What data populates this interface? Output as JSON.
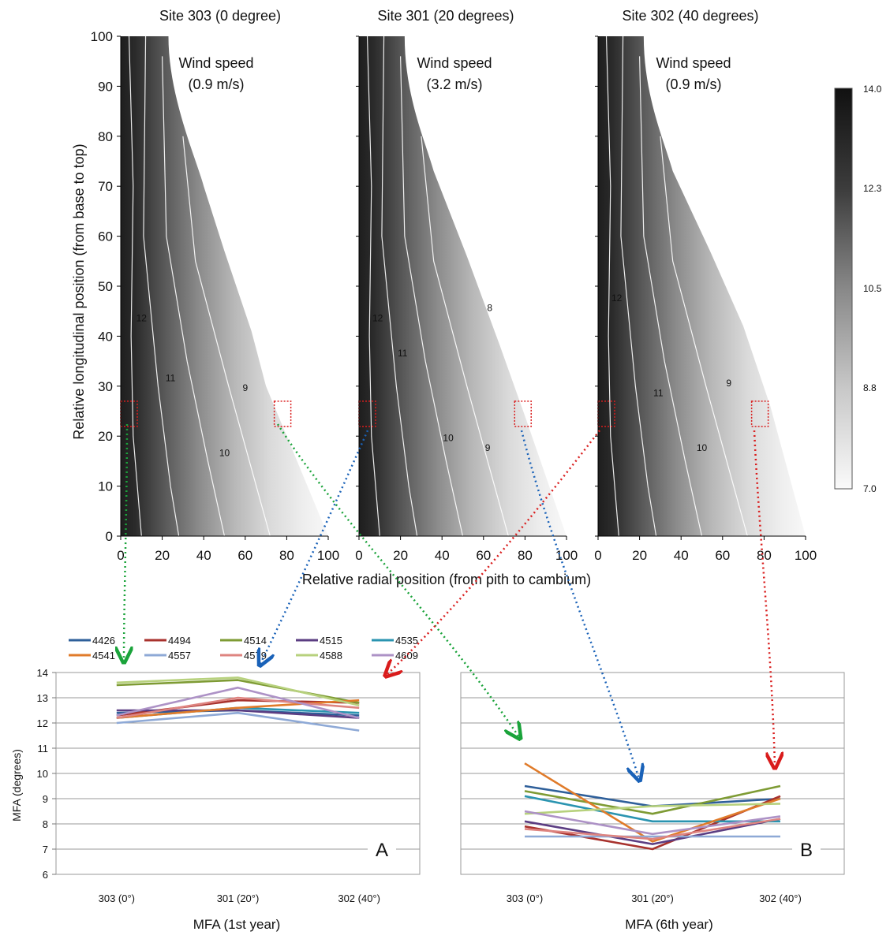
{
  "chart_data": [
    {
      "type": "heatmap",
      "name": "site-303",
      "title": "Site 303 (0 degree)",
      "annotation": [
        "Wind speed",
        "(0.9 m/s)"
      ],
      "xlabel": "Relative radial position (from pith to cambium)",
      "ylabel": "Relative longitudinal position (from base to top)",
      "xlim": [
        0,
        100
      ],
      "ylim": [
        0,
        100
      ],
      "xticks": [
        "0",
        "20",
        "40",
        "60",
        "80",
        "100"
      ],
      "yticks": [
        "0",
        "10",
        "20",
        "30",
        "40",
        "50",
        "60",
        "70",
        "80",
        "90",
        "100"
      ],
      "contour_labels": [
        {
          "label": "12",
          "x": 10,
          "y": 43
        },
        {
          "label": "11",
          "x": 24,
          "y": 31
        },
        {
          "label": "10",
          "x": 50,
          "y": 16
        },
        {
          "label": "9",
          "x": 60,
          "y": 29
        }
      ],
      "outline": {
        "top_width": 23,
        "mid": [
          [
            40,
            70
          ],
          [
            50,
            57
          ],
          [
            63,
            41
          ],
          [
            70,
            30
          ],
          [
            100,
            0
          ]
        ]
      }
    },
    {
      "type": "heatmap",
      "name": "site-301",
      "title": "Site 301 (20 degrees)",
      "annotation": [
        "Wind speed",
        "(3.2 m/s)"
      ],
      "xlim": [
        0,
        100
      ],
      "ylim": [
        0,
        100
      ],
      "xticks": [
        "0",
        "20",
        "40",
        "60",
        "80",
        "100"
      ],
      "contour_labels": [
        {
          "label": "12",
          "x": 9,
          "y": 43
        },
        {
          "label": "11",
          "x": 21,
          "y": 36
        },
        {
          "label": "10",
          "x": 43,
          "y": 19
        },
        {
          "label": "9",
          "x": 62,
          "y": 17
        },
        {
          "label": "8",
          "x": 63,
          "y": 45
        }
      ],
      "outline": {
        "top_width": 22,
        "mid": [
          [
            36,
            73
          ],
          [
            52,
            56
          ],
          [
            68,
            38
          ],
          [
            80,
            24
          ],
          [
            100,
            0
          ]
        ]
      }
    },
    {
      "type": "heatmap",
      "name": "site-302",
      "title": "Site 302 (40 degrees)",
      "annotation": [
        "Wind speed",
        "(0.9 m/s)"
      ],
      "xlim": [
        0,
        100
      ],
      "ylim": [
        0,
        100
      ],
      "xticks": [
        "0",
        "20",
        "40",
        "60",
        "80",
        "100"
      ],
      "contour_labels": [
        {
          "label": "12",
          "x": 9,
          "y": 47
        },
        {
          "label": "11",
          "x": 29,
          "y": 28
        },
        {
          "label": "10",
          "x": 50,
          "y": 17
        },
        {
          "label": "9",
          "x": 63,
          "y": 30
        }
      ],
      "outline": {
        "top_width": 22,
        "mid": [
          [
            36,
            73
          ],
          [
            54,
            57
          ],
          [
            70,
            42
          ],
          [
            83,
            26
          ],
          [
            100,
            0
          ]
        ]
      }
    },
    {
      "type": "colorbar",
      "ticks": [
        "14.0",
        "12.3",
        "10.5",
        "8.8",
        "7.0"
      ],
      "range": [
        7.0,
        14.0
      ]
    },
    {
      "type": "line",
      "name": "mfa-1st-year",
      "xlabel": "MFA (1st year)",
      "ylabel": "MFA (degrees)",
      "panel_letter": "A",
      "categories": [
        "303 (0°)",
        "301 (20°)",
        "302 (40°)"
      ],
      "ylim": [
        6,
        14
      ],
      "yticks": [
        "6",
        "7",
        "8",
        "9",
        "10",
        "11",
        "12",
        "13",
        "14"
      ],
      "grid": true,
      "legend": "top",
      "series": [
        {
          "name": "4426",
          "color": "#2e5f9a",
          "values": [
            12.4,
            12.5,
            12.3
          ]
        },
        {
          "name": "4494",
          "color": "#a8322d",
          "values": [
            12.3,
            12.9,
            12.8
          ]
        },
        {
          "name": "4514",
          "color": "#7e9b34",
          "values": [
            13.5,
            13.7,
            12.8
          ]
        },
        {
          "name": "4515",
          "color": "#5b3d82",
          "values": [
            12.5,
            12.5,
            12.2
          ]
        },
        {
          "name": "4535",
          "color": "#2a94b0",
          "values": [
            12.2,
            12.6,
            12.4
          ]
        },
        {
          "name": "4541",
          "color": "#e07b2a",
          "values": [
            12.2,
            12.6,
            12.9
          ]
        },
        {
          "name": "4557",
          "color": "#8ea9d6",
          "values": [
            12.0,
            12.4,
            11.7
          ]
        },
        {
          "name": "4579",
          "color": "#de8480",
          "values": [
            12.2,
            13.0,
            12.6
          ]
        },
        {
          "name": "4588",
          "color": "#b7d17d",
          "values": [
            13.6,
            13.8,
            12.7
          ]
        },
        {
          "name": "4609",
          "color": "#ad92c6",
          "values": [
            12.3,
            13.4,
            12.2
          ]
        }
      ]
    },
    {
      "type": "line",
      "name": "mfa-6th-year",
      "xlabel": "MFA (6th year)",
      "panel_letter": "B",
      "categories": [
        "303 (0°)",
        "301 (20°)",
        "302 (40°)"
      ],
      "ylim": [
        6,
        14
      ],
      "grid": true,
      "series": [
        {
          "name": "4426",
          "color": "#2e5f9a",
          "values": [
            9.5,
            8.7,
            9.0
          ]
        },
        {
          "name": "4494",
          "color": "#a8322d",
          "values": [
            7.9,
            7.0,
            9.1
          ]
        },
        {
          "name": "4514",
          "color": "#7e9b34",
          "values": [
            9.3,
            8.4,
            9.5
          ]
        },
        {
          "name": "4515",
          "color": "#5b3d82",
          "values": [
            8.1,
            7.2,
            8.2
          ]
        },
        {
          "name": "4535",
          "color": "#2a94b0",
          "values": [
            9.1,
            8.1,
            8.1
          ]
        },
        {
          "name": "4541",
          "color": "#e07b2a",
          "values": [
            10.4,
            7.3,
            9.0
          ]
        },
        {
          "name": "4557",
          "color": "#8ea9d6",
          "values": [
            7.5,
            7.5,
            7.5
          ]
        },
        {
          "name": "4579",
          "color": "#de8480",
          "values": [
            7.8,
            7.4,
            8.2
          ]
        },
        {
          "name": "4588",
          "color": "#b7d17d",
          "values": [
            8.4,
            8.7,
            8.8
          ]
        },
        {
          "name": "4609",
          "color": "#ad92c6",
          "values": [
            8.5,
            7.6,
            8.3
          ]
        }
      ]
    }
  ]
}
